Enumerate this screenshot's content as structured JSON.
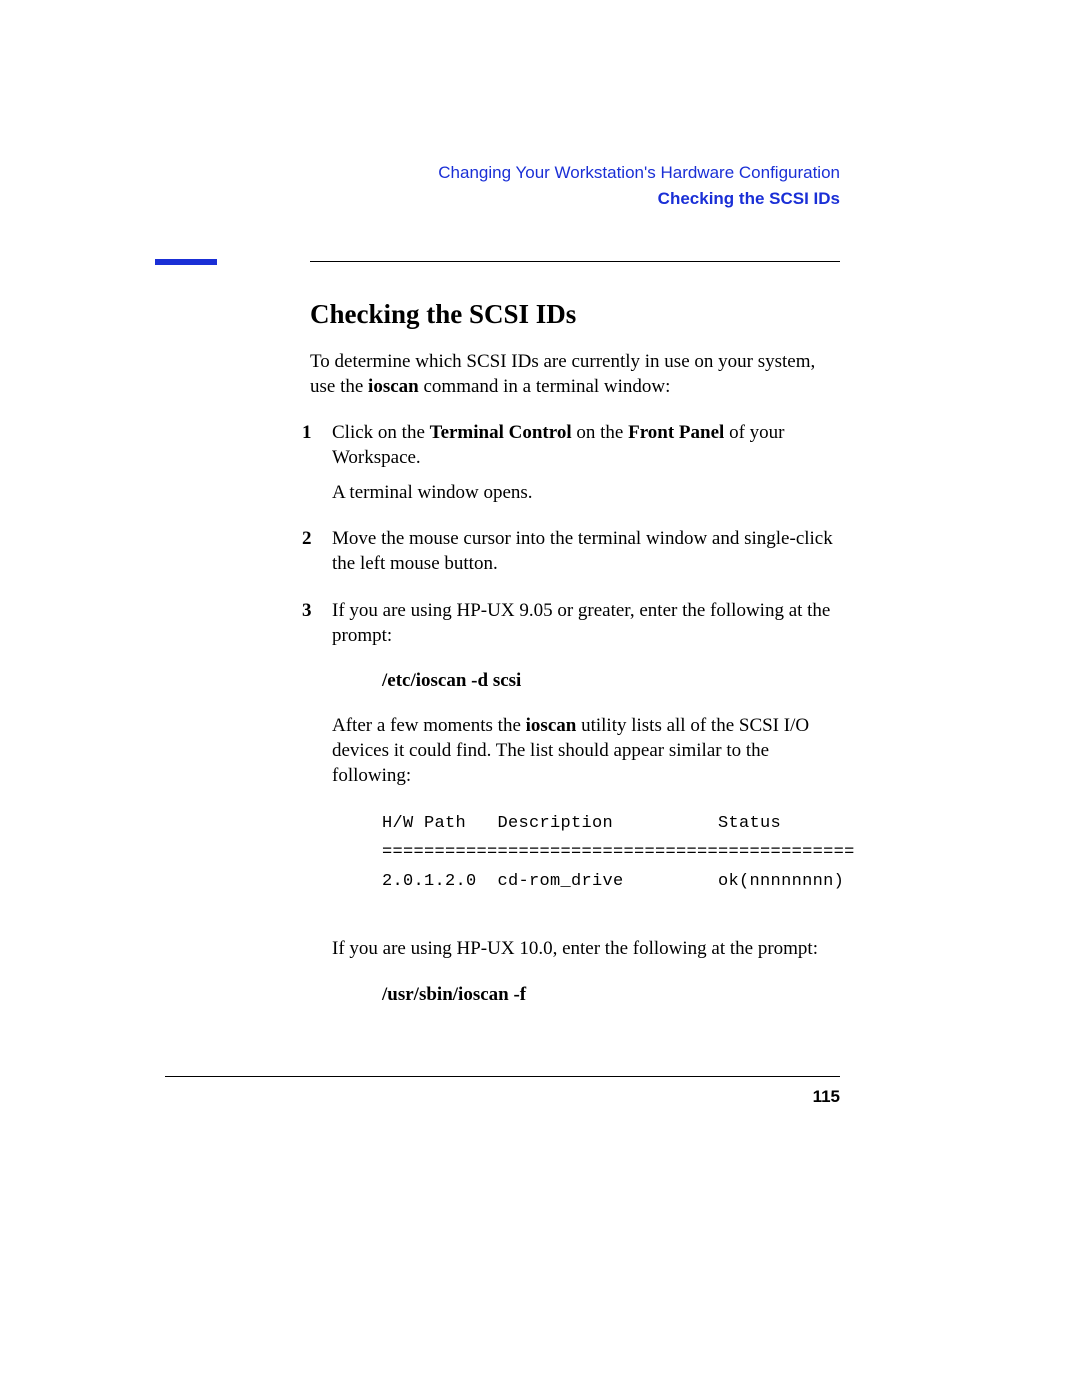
{
  "header": {
    "chapter": "Changing Your Workstation's Hardware Configuration",
    "section": "Checking the SCSI IDs",
    "accent_color": "#1a2fd6"
  },
  "title": "Checking the SCSI IDs",
  "intro": {
    "pre": "To determine which SCSI IDs are currently in use on your system, use the ",
    "cmd": "ioscan",
    "post": " command in a terminal window:"
  },
  "steps": {
    "s1": {
      "a": "Click on the ",
      "b": "Terminal Control",
      "c": " on the ",
      "d": "Front Panel",
      "e": " of your Workspace.",
      "sub": "A terminal window opens."
    },
    "s2": "Move the mouse cursor into the terminal window and single-click the left mouse button.",
    "s3": "If you are using HP-UX 9.05 or greater, enter the following at the prompt:"
  },
  "cmd1": "/etc/ioscan -d scsi",
  "after1": {
    "a": "After a few moments the ",
    "b": "ioscan",
    "c": " utility lists all of the SCSI I/O devices it could find. The list should appear similar to the following:"
  },
  "code": "H/W Path   Description          Status\n=============================================\n2.0.1.2.0  cd-rom_drive         ok(nnnnnnnn)",
  "post": "If you are using HP-UX 10.0, enter the following at the prompt:",
  "cmd2": "/usr/sbin/ioscan -f",
  "pagenum": "115"
}
